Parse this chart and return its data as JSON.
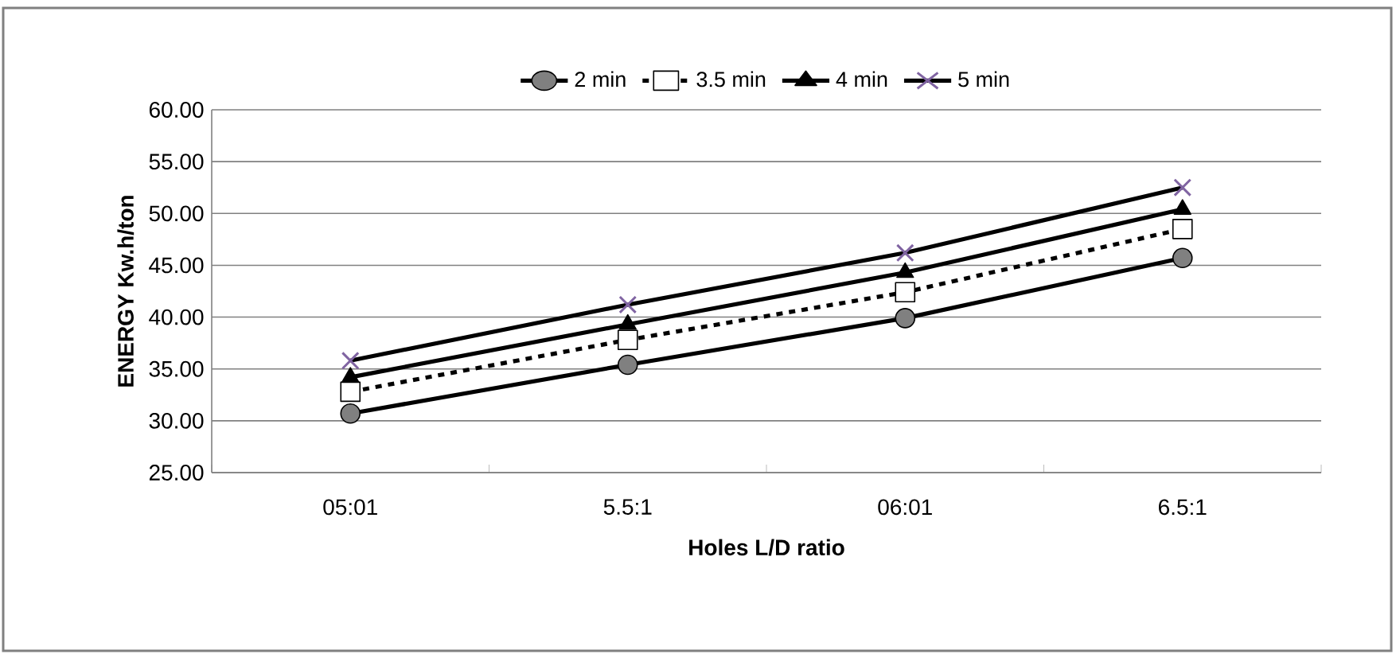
{
  "chart_data": {
    "type": "line",
    "xlabel": "Holes L/D ratio",
    "ylabel": "ENERGY Kw.h/ton",
    "categories": [
      "05:01",
      "5.5:1",
      "06:01",
      "6.5:1"
    ],
    "series": [
      {
        "name": "2 min",
        "color": "#000000",
        "marker": "circle",
        "line_style": "solid",
        "values": [
          30.7,
          35.4,
          39.9,
          45.7
        ]
      },
      {
        "name": "3.5 min",
        "color": "#000000",
        "marker": "square",
        "line_style": "dashed",
        "values": [
          32.8,
          37.8,
          42.4,
          48.5
        ]
      },
      {
        "name": "4 min",
        "color": "#000000",
        "marker": "triangle",
        "line_style": "solid",
        "values": [
          34.2,
          39.3,
          44.3,
          50.4
        ]
      },
      {
        "name": "5 min",
        "color": "#000000",
        "marker": "cross",
        "line_style": "solid",
        "values": [
          35.8,
          41.2,
          46.2,
          52.5
        ]
      }
    ],
    "ylim": [
      25,
      60
    ],
    "yticks": [
      {
        "value": 25,
        "label": "25.00"
      },
      {
        "value": 30,
        "label": "30.00"
      },
      {
        "value": 35,
        "label": "35.00"
      },
      {
        "value": 40,
        "label": "40.00"
      },
      {
        "value": 45,
        "label": "45.00"
      },
      {
        "value": 50,
        "label": "50.00"
      },
      {
        "value": 55,
        "label": "55.00"
      },
      {
        "value": 60,
        "label": "60.00"
      }
    ],
    "grid": "y",
    "legend": "top"
  }
}
